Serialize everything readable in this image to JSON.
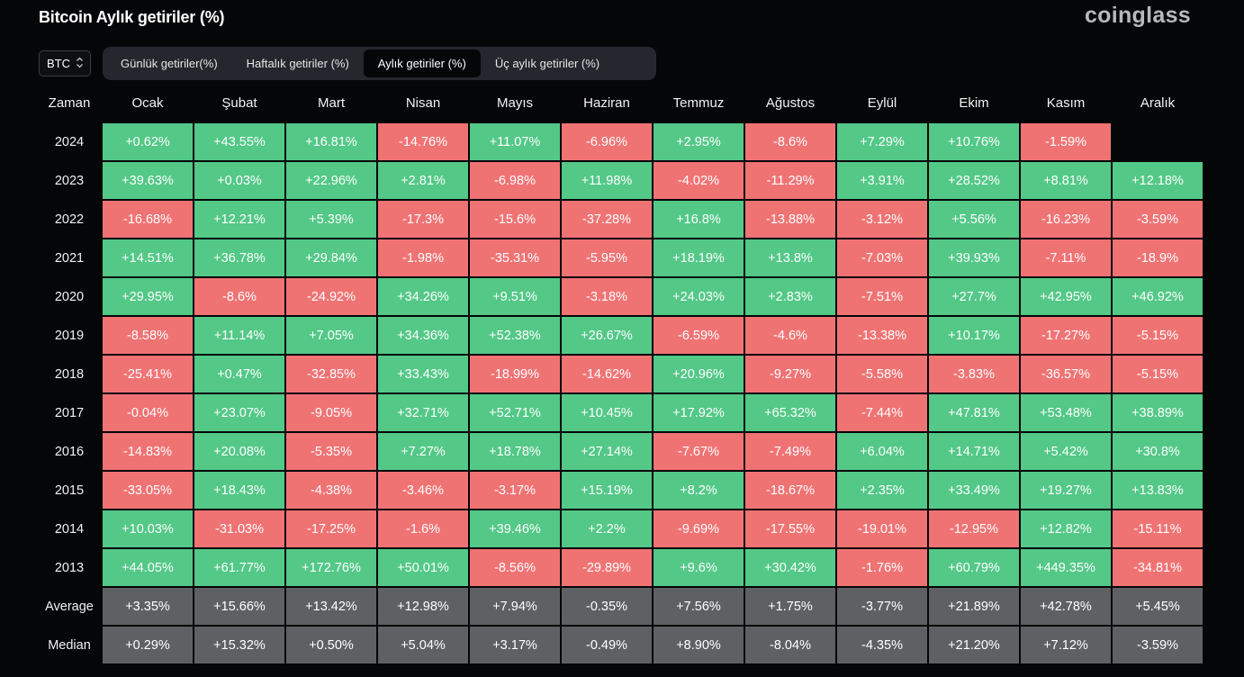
{
  "header": {
    "title": "Bitcoin Aylık getiriler (%)",
    "brand": "coinglass"
  },
  "coin_select": {
    "value": "BTC",
    "icon": "updown-chevron-icon"
  },
  "tabs": [
    {
      "label": "Günlük getiriler(%)",
      "active": false
    },
    {
      "label": "Haftalık getiriler (%)",
      "active": false
    },
    {
      "label": "Aylık getiriler (%)",
      "active": true
    },
    {
      "label": "Üç aylık getiriler (%)",
      "active": false
    }
  ],
  "colors": {
    "positive": "#53c887",
    "negative": "#f07374",
    "summary": "#5f6063"
  },
  "table": {
    "corner_label": "Zaman",
    "months": [
      "Ocak",
      "Şubat",
      "Mart",
      "Nisan",
      "Mayıs",
      "Haziran",
      "Temmuz",
      "Ağustos",
      "Eylül",
      "Ekim",
      "Kasım",
      "Aralık"
    ],
    "rows": [
      {
        "label": "2024",
        "kind": "year",
        "values": [
          "+0.62%",
          "+43.55%",
          "+16.81%",
          "-14.76%",
          "+11.07%",
          "-6.96%",
          "+2.95%",
          "-8.6%",
          "+7.29%",
          "+10.76%",
          "-1.59%",
          ""
        ]
      },
      {
        "label": "2023",
        "kind": "year",
        "values": [
          "+39.63%",
          "+0.03%",
          "+22.96%",
          "+2.81%",
          "-6.98%",
          "+11.98%",
          "-4.02%",
          "-11.29%",
          "+3.91%",
          "+28.52%",
          "+8.81%",
          "+12.18%"
        ]
      },
      {
        "label": "2022",
        "kind": "year",
        "values": [
          "-16.68%",
          "+12.21%",
          "+5.39%",
          "-17.3%",
          "-15.6%",
          "-37.28%",
          "+16.8%",
          "-13.88%",
          "-3.12%",
          "+5.56%",
          "-16.23%",
          "-3.59%"
        ]
      },
      {
        "label": "2021",
        "kind": "year",
        "values": [
          "+14.51%",
          "+36.78%",
          "+29.84%",
          "-1.98%",
          "-35.31%",
          "-5.95%",
          "+18.19%",
          "+13.8%",
          "-7.03%",
          "+39.93%",
          "-7.11%",
          "-18.9%"
        ]
      },
      {
        "label": "2020",
        "kind": "year",
        "values": [
          "+29.95%",
          "-8.6%",
          "-24.92%",
          "+34.26%",
          "+9.51%",
          "-3.18%",
          "+24.03%",
          "+2.83%",
          "-7.51%",
          "+27.7%",
          "+42.95%",
          "+46.92%"
        ]
      },
      {
        "label": "2019",
        "kind": "year",
        "values": [
          "-8.58%",
          "+11.14%",
          "+7.05%",
          "+34.36%",
          "+52.38%",
          "+26.67%",
          "-6.59%",
          "-4.6%",
          "-13.38%",
          "+10.17%",
          "-17.27%",
          "-5.15%"
        ]
      },
      {
        "label": "2018",
        "kind": "year",
        "values": [
          "-25.41%",
          "+0.47%",
          "-32.85%",
          "+33.43%",
          "-18.99%",
          "-14.62%",
          "+20.96%",
          "-9.27%",
          "-5.58%",
          "-3.83%",
          "-36.57%",
          "-5.15%"
        ]
      },
      {
        "label": "2017",
        "kind": "year",
        "values": [
          "-0.04%",
          "+23.07%",
          "-9.05%",
          "+32.71%",
          "+52.71%",
          "+10.45%",
          "+17.92%",
          "+65.32%",
          "-7.44%",
          "+47.81%",
          "+53.48%",
          "+38.89%"
        ]
      },
      {
        "label": "2016",
        "kind": "year",
        "values": [
          "-14.83%",
          "+20.08%",
          "-5.35%",
          "+7.27%",
          "+18.78%",
          "+27.14%",
          "-7.67%",
          "-7.49%",
          "+6.04%",
          "+14.71%",
          "+5.42%",
          "+30.8%"
        ]
      },
      {
        "label": "2015",
        "kind": "year",
        "values": [
          "-33.05%",
          "+18.43%",
          "-4.38%",
          "-3.46%",
          "-3.17%",
          "+15.19%",
          "+8.2%",
          "-18.67%",
          "+2.35%",
          "+33.49%",
          "+19.27%",
          "+13.83%"
        ]
      },
      {
        "label": "2014",
        "kind": "year",
        "values": [
          "+10.03%",
          "-31.03%",
          "-17.25%",
          "-1.6%",
          "+39.46%",
          "+2.2%",
          "-9.69%",
          "-17.55%",
          "-19.01%",
          "-12.95%",
          "+12.82%",
          "-15.11%"
        ]
      },
      {
        "label": "2013",
        "kind": "year",
        "values": [
          "+44.05%",
          "+61.77%",
          "+172.76%",
          "+50.01%",
          "-8.56%",
          "-29.89%",
          "+9.6%",
          "+30.42%",
          "-1.76%",
          "+60.79%",
          "+449.35%",
          "-34.81%"
        ]
      },
      {
        "label": "Average",
        "kind": "summary",
        "values": [
          "+3.35%",
          "+15.66%",
          "+13.42%",
          "+12.98%",
          "+7.94%",
          "-0.35%",
          "+7.56%",
          "+1.75%",
          "-3.77%",
          "+21.89%",
          "+42.78%",
          "+5.45%"
        ]
      },
      {
        "label": "Median",
        "kind": "summary",
        "values": [
          "+0.29%",
          "+15.32%",
          "+0.50%",
          "+5.04%",
          "+3.17%",
          "-0.49%",
          "+8.90%",
          "-8.04%",
          "-4.35%",
          "+21.20%",
          "+7.12%",
          "-3.59%"
        ]
      }
    ]
  }
}
